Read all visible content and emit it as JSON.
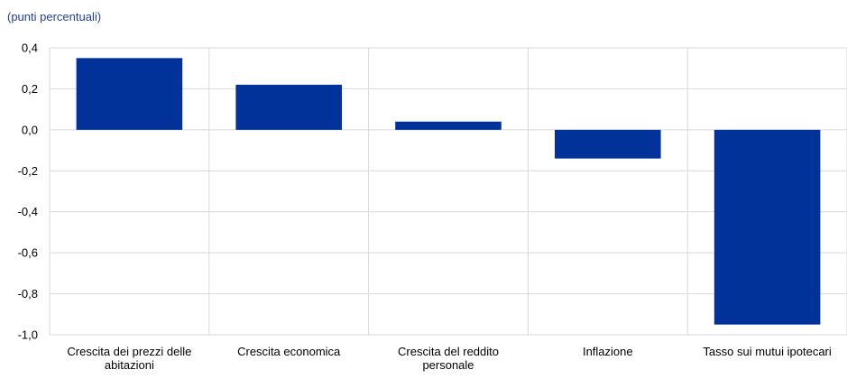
{
  "chart_data": {
    "type": "bar",
    "ylabel": "(punti percentuali)",
    "categories": [
      "Crescita dei prezzi delle abitazioni",
      "Crescita economica",
      "Crescita del reddito personale",
      "Inflazione",
      "Tasso sui mutui ipotecari"
    ],
    "category_lines": [
      [
        "Crescita dei prezzi delle",
        "abitazioni"
      ],
      [
        "Crescita economica"
      ],
      [
        "Crescita del reddito",
        "personale"
      ],
      [
        "Inflazione"
      ],
      [
        "Tasso sui mutui ipotecari"
      ]
    ],
    "values": [
      0.35,
      0.22,
      0.04,
      -0.14,
      -0.95
    ],
    "ylim": [
      -1.0,
      0.4
    ],
    "yticks": [
      0.4,
      0.2,
      0.0,
      -0.2,
      -0.4,
      -0.6,
      -0.8,
      -1.0
    ],
    "ytick_labels": [
      "0,4",
      "0,2",
      "0,0",
      "-0,2",
      "-0,4",
      "-0,6",
      "-0,8",
      "-1,0"
    ],
    "grid": true,
    "colors": {
      "bar": "#003299",
      "unit_label": "#1f3fa0",
      "grid": "#d9d9d9",
      "text": "#000000"
    }
  }
}
